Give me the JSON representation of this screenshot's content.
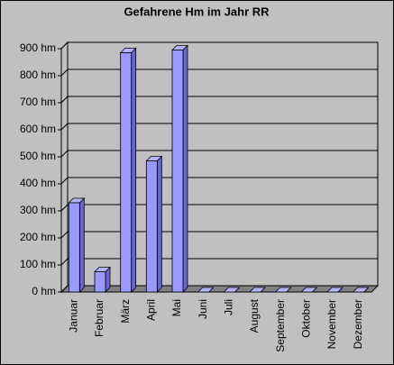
{
  "chart_data": {
    "type": "bar",
    "title": "Gefahrene Hm im Jahr RR",
    "categories": [
      "Januar",
      "Februar",
      "März",
      "April",
      "Mai",
      "Juni",
      "Juli",
      "August",
      "September",
      "Oktober",
      "November",
      "Dezember"
    ],
    "values": [
      330,
      75,
      885,
      485,
      895,
      0,
      0,
      0,
      0,
      0,
      0,
      0
    ],
    "color": "#9999ff",
    "ylim": [
      0,
      900
    ],
    "yticks": [
      {
        "value": 0,
        "label": "0 hm"
      },
      {
        "value": 100,
        "label": "100 hm"
      },
      {
        "value": 200,
        "label": "200 hm"
      },
      {
        "value": 300,
        "label": "300 hm"
      },
      {
        "value": 400,
        "label": "400 hm"
      },
      {
        "value": 500,
        "label": "500 hm"
      },
      {
        "value": 600,
        "label": "600 hm"
      },
      {
        "value": 700,
        "label": "700 hm"
      },
      {
        "value": 800,
        "label": "800 hm"
      },
      {
        "value": 900,
        "label": "900 hm"
      }
    ],
    "grid": true
  }
}
